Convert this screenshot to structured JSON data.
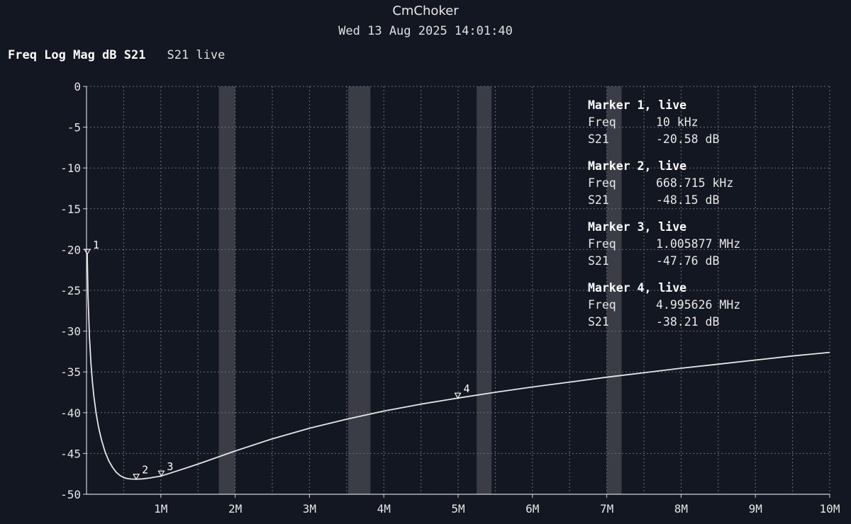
{
  "header": {
    "title": "CmChoker",
    "timestamp": "Wed 13 Aug 2025 14:01:40"
  },
  "trace": {
    "format_label": "Freq Log Mag dB S21",
    "name_label": "S21 live"
  },
  "colors": {
    "background": "#131722",
    "trace": "#e6e6e6",
    "grid": "#6a6e78",
    "band": "#3a3d46"
  },
  "chart_data": {
    "type": "line",
    "title": "CmChoker",
    "xlabel": "",
    "ylabel": "",
    "xlim": [
      0,
      10000000
    ],
    "ylim": [
      -50,
      0
    ],
    "grid": true,
    "x_ticks": [
      1000000,
      2000000,
      3000000,
      4000000,
      5000000,
      6000000,
      7000000,
      8000000,
      9000000,
      10000000
    ],
    "x_tick_labels": [
      "1M",
      "2M",
      "3M",
      "4M",
      "5M",
      "6M",
      "7M",
      "8M",
      "9M",
      "10M"
    ],
    "y_ticks": [
      0,
      -5,
      -10,
      -15,
      -20,
      -25,
      -30,
      -35,
      -40,
      -45,
      -50
    ],
    "y_tick_labels": [
      "0",
      "-5",
      "-10",
      "-15",
      "-20",
      "-25",
      "-30",
      "-35",
      "-40",
      "-45",
      "-50"
    ],
    "shaded_bands": [
      [
        1780000,
        2000000
      ],
      [
        3520000,
        3820000
      ],
      [
        5250000,
        5450000
      ],
      [
        7000000,
        7200000
      ]
    ],
    "series": [
      {
        "x": [
          10000,
          20000,
          40000,
          60000,
          80000,
          100000,
          130000,
          160000,
          200000,
          250000,
          300000,
          350000,
          400000,
          450000,
          500000,
          550000,
          600000,
          668715,
          750000,
          850000,
          1005877,
          1200000,
          1500000,
          2000000,
          2500000,
          3000000,
          3500000,
          4000000,
          4500000,
          4995626,
          5500000,
          6000000,
          6500000,
          7000000,
          7500000,
          8000000,
          8500000,
          9000000,
          9500000,
          10000000
        ],
        "y": [
          -20.58,
          -25.6,
          -30.8,
          -34.0,
          -36.3,
          -38.1,
          -40.1,
          -41.7,
          -43.3,
          -44.8,
          -45.9,
          -46.7,
          -47.3,
          -47.7,
          -47.95,
          -48.08,
          -48.13,
          -48.15,
          -48.12,
          -48.0,
          -47.76,
          -47.2,
          -46.3,
          -44.7,
          -43.2,
          -41.9,
          -40.8,
          -39.8,
          -38.95,
          -38.21,
          -37.5,
          -36.85,
          -36.25,
          -35.65,
          -35.1,
          -34.55,
          -34.05,
          -33.55,
          -33.05,
          -32.6
        ]
      }
    ],
    "markers": [
      {
        "number": "1",
        "x": 10000,
        "y": -20.58,
        "title": "Marker 1, live",
        "freq_label": "Freq",
        "freq_value": "10 kHz",
        "s21_label": "S21",
        "s21_value": "-20.58 dB"
      },
      {
        "number": "2",
        "x": 668715,
        "y": -48.15,
        "title": "Marker 2, live",
        "freq_label": "Freq",
        "freq_value": "668.715 kHz",
        "s21_label": "S21",
        "s21_value": "-48.15 dB"
      },
      {
        "number": "3",
        "x": 1005877,
        "y": -47.76,
        "title": "Marker 3, live",
        "freq_label": "Freq",
        "freq_value": "1.005877 MHz",
        "s21_label": "S21",
        "s21_value": "-47.76 dB"
      },
      {
        "number": "4",
        "x": 4995626,
        "y": -38.21,
        "title": "Marker 4, live",
        "freq_label": "Freq",
        "freq_value": "4.995626 MHz",
        "s21_label": "S21",
        "s21_value": "-38.21 dB"
      }
    ]
  }
}
